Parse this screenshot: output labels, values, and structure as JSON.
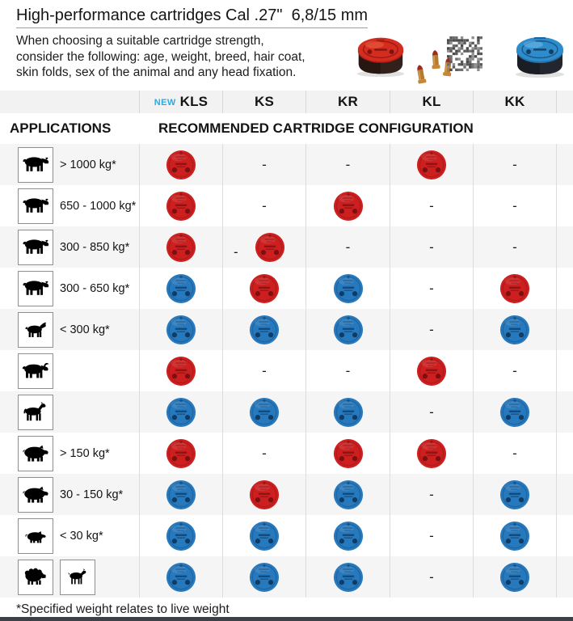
{
  "header": {
    "title": "High-performance cartridges Cal .27\"  6,8/15 mm",
    "intro": "When choosing a suitable cartridge strength,\nconsider the following: age, weight, breed, hair coat,\nskin folds, sex of the animal and any head fixation."
  },
  "photo": {
    "items": [
      "red-cartridge-tin",
      "cartridge-rounds",
      "qr-code",
      "blue-cartridge-tin"
    ]
  },
  "colors": {
    "new_badge": "#29abe2",
    "tin_red": "#cd1f1f",
    "tin_blue": "#2779bd"
  },
  "table": {
    "new_badge": "NEW",
    "columns": [
      "KLS",
      "KS",
      "KR",
      "KL",
      "KK"
    ],
    "applications_label": "APPLICATIONS",
    "config_label": "RECOMMENDED CARTRIDGE CONFIGURATION",
    "dash_symbol": "-",
    "rows": [
      {
        "animals": [
          "cattle"
        ],
        "weight": "> 1000 kg*",
        "cells": [
          "red",
          "dash",
          "dash",
          "red",
          "dash"
        ]
      },
      {
        "animals": [
          "cattle"
        ],
        "weight": "650 - 1000 kg*",
        "cells": [
          "red",
          "dash",
          "red",
          "dash",
          "dash"
        ]
      },
      {
        "animals": [
          "cattle"
        ],
        "weight": "300 - 850 kg*",
        "cells": [
          "red",
          "red+dash",
          "dash",
          "dash",
          "dash"
        ]
      },
      {
        "animals": [
          "cattle"
        ],
        "weight": "300 - 650 kg*",
        "cells": [
          "blue",
          "red",
          "blue",
          "dash",
          "red"
        ]
      },
      {
        "animals": [
          "calf"
        ],
        "weight": "< 300 kg*",
        "cells": [
          "blue",
          "blue",
          "blue",
          "dash",
          "blue"
        ]
      },
      {
        "animals": [
          "buffalo"
        ],
        "weight": "",
        "cells": [
          "red",
          "dash",
          "dash",
          "red",
          "dash"
        ]
      },
      {
        "animals": [
          "horse"
        ],
        "weight": "",
        "cells": [
          "blue",
          "blue",
          "blue",
          "dash",
          "blue"
        ]
      },
      {
        "animals": [
          "pig"
        ],
        "weight": "> 150 kg*",
        "cells": [
          "red",
          "dash",
          "red",
          "red",
          "dash"
        ]
      },
      {
        "animals": [
          "pig"
        ],
        "weight": "30 - 150 kg*",
        "cells": [
          "blue",
          "red",
          "blue",
          "dash",
          "blue"
        ]
      },
      {
        "animals": [
          "piglet"
        ],
        "weight": "< 30 kg*",
        "cells": [
          "blue",
          "blue",
          "blue",
          "dash",
          "blue"
        ]
      },
      {
        "animals": [
          "sheep",
          "goat"
        ],
        "weight": "",
        "cells": [
          "blue",
          "blue",
          "blue",
          "dash",
          "blue"
        ]
      }
    ]
  },
  "footnote": "*Specified weight relates to live weight"
}
